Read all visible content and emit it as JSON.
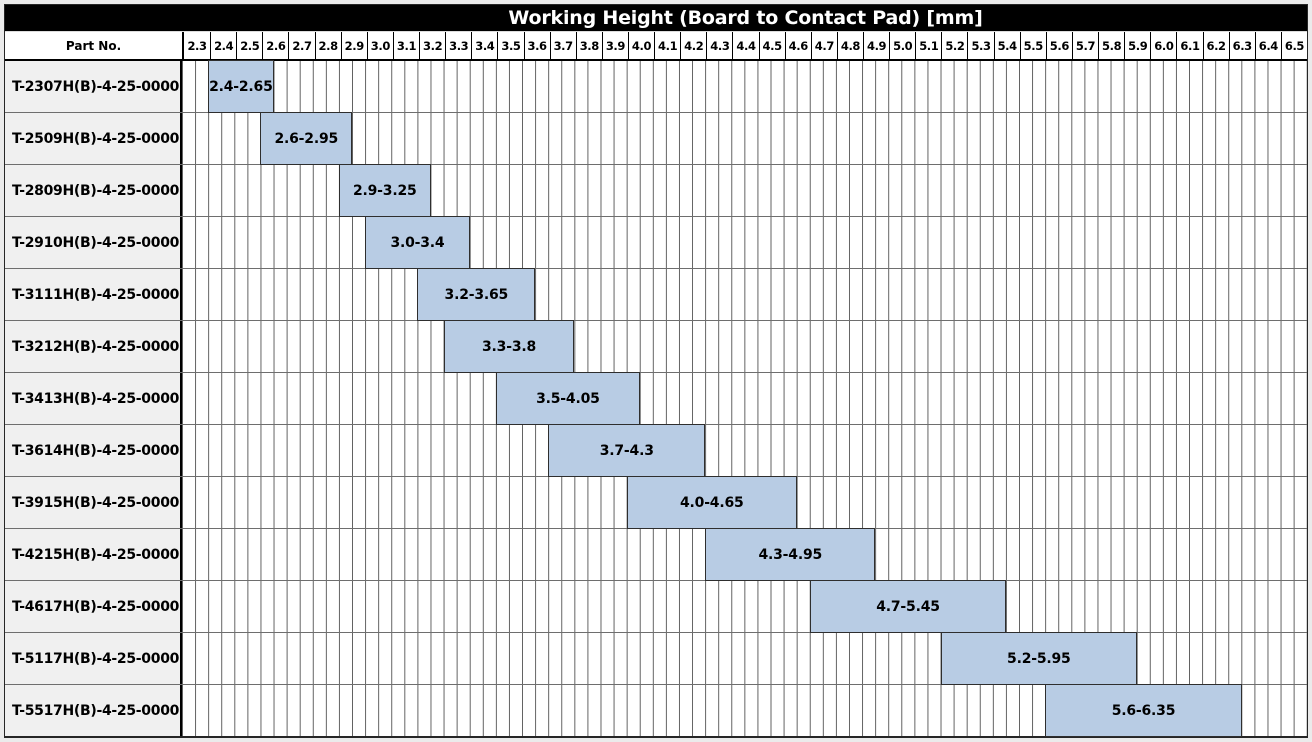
{
  "title": "Working Height (Board to Contact Pad) [mm]",
  "part_col_header": "Part No.",
  "axis": {
    "min": 2.3,
    "max": 6.6,
    "tick_step": 0.1,
    "minor_step": 0.05,
    "ticks": [
      "2.3",
      "2.4",
      "2.5",
      "2.6",
      "2.7",
      "2.8",
      "2.9",
      "3.0",
      "3.1",
      "3.2",
      "3.3",
      "3.4",
      "3.5",
      "3.6",
      "3.7",
      "3.8",
      "3.9",
      "4.0",
      "4.1",
      "4.2",
      "4.3",
      "4.4",
      "4.5",
      "4.6",
      "4.7",
      "4.8",
      "4.9",
      "5.0",
      "5.1",
      "5.2",
      "5.3",
      "5.4",
      "5.5",
      "5.6",
      "5.7",
      "5.8",
      "5.9",
      "6.0",
      "6.1",
      "6.2",
      "6.3",
      "6.4",
      "6.5"
    ]
  },
  "rows": [
    {
      "part": "T-2307H(B)-4-25-0000",
      "start": 2.4,
      "end": 2.65,
      "label": "2.4-2.65"
    },
    {
      "part": "T-2509H(B)-4-25-0000",
      "start": 2.6,
      "end": 2.95,
      "label": "2.6-2.95"
    },
    {
      "part": "T-2809H(B)-4-25-0000",
      "start": 2.9,
      "end": 3.25,
      "label": "2.9-3.25"
    },
    {
      "part": "T-2910H(B)-4-25-0000",
      "start": 3.0,
      "end": 3.4,
      "label": "3.0-3.4"
    },
    {
      "part": "T-3111H(B)-4-25-0000",
      "start": 3.2,
      "end": 3.65,
      "label": "3.2-3.65"
    },
    {
      "part": "T-3212H(B)-4-25-0000",
      "start": 3.3,
      "end": 3.8,
      "label": "3.3-3.8"
    },
    {
      "part": "T-3413H(B)-4-25-0000",
      "start": 3.5,
      "end": 4.05,
      "label": "3.5-4.05"
    },
    {
      "part": "T-3614H(B)-4-25-0000",
      "start": 3.7,
      "end": 4.3,
      "label": "3.7-4.3"
    },
    {
      "part": "T-3915H(B)-4-25-0000",
      "start": 4.0,
      "end": 4.65,
      "label": "4.0-4.65"
    },
    {
      "part": "T-4215H(B)-4-25-0000",
      "start": 4.3,
      "end": 4.95,
      "label": "4.3-4.95"
    },
    {
      "part": "T-4617H(B)-4-25-0000",
      "start": 4.7,
      "end": 5.45,
      "label": "4.7-5.45"
    },
    {
      "part": "T-5117H(B)-4-25-0000",
      "start": 5.2,
      "end": 5.95,
      "label": "5.2-5.95"
    },
    {
      "part": "T-5517H(B)-4-25-0000",
      "start": 5.6,
      "end": 6.35,
      "label": "5.6-6.35"
    }
  ],
  "colors": {
    "bar_fill": "#b8cce4",
    "bar_border": "#2e2e2e",
    "title_bg": "#000000",
    "title_text": "#ffffff",
    "part_cell_bg": "#f0f0f0",
    "gridline": "#5f5f5f",
    "row_border": "#6e6e6e",
    "header_border": "#000000"
  },
  "chart_data": {
    "type": "bar",
    "subtype": "horizontal-range (Gantt-style working-height selection chart)",
    "title": "Working Height (Board to Contact Pad) [mm]",
    "categories": [
      "T-2307H(B)-4-25-0000",
      "T-2509H(B)-4-25-0000",
      "T-2809H(B)-4-25-0000",
      "T-2910H(B)-4-25-0000",
      "T-3111H(B)-4-25-0000",
      "T-3212H(B)-4-25-0000",
      "T-3413H(B)-4-25-0000",
      "T-3614H(B)-4-25-0000",
      "T-3915H(B)-4-25-0000",
      "T-4215H(B)-4-25-0000",
      "T-4617H(B)-4-25-0000",
      "T-5117H(B)-4-25-0000",
      "T-5517H(B)-4-25-0000"
    ],
    "ranges": [
      [
        2.4,
        2.65
      ],
      [
        2.6,
        2.95
      ],
      [
        2.9,
        3.25
      ],
      [
        3.0,
        3.4
      ],
      [
        3.2,
        3.65
      ],
      [
        3.3,
        3.8
      ],
      [
        3.5,
        4.05
      ],
      [
        3.7,
        4.3
      ],
      [
        4.0,
        4.65
      ],
      [
        4.3,
        4.95
      ],
      [
        4.7,
        5.45
      ],
      [
        5.2,
        5.95
      ],
      [
        5.6,
        6.35
      ]
    ],
    "bar_labels": [
      "2.4-2.65",
      "2.6-2.95",
      "2.9-3.25",
      "3.0-3.4",
      "3.2-3.65",
      "3.3-3.8",
      "3.5-4.05",
      "3.7-4.3",
      "4.0-4.65",
      "4.3-4.95",
      "4.7-5.45",
      "5.2-5.95",
      "5.6-6.35"
    ],
    "xlabel": "Working Height (Board to Contact Pad) [mm]",
    "ylabel": "Part No.",
    "xlim": [
      2.3,
      6.6
    ],
    "x_major_tick": 0.1,
    "x_minor_tick": 0.05,
    "grid": true,
    "legend": false
  }
}
